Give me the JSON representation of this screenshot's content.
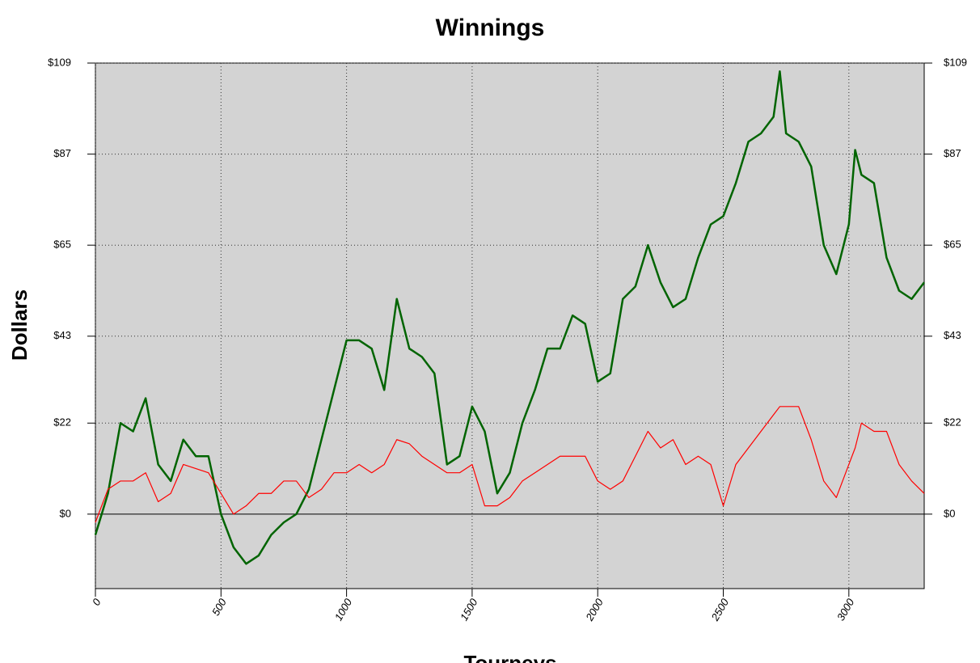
{
  "chart_data": {
    "type": "line",
    "title": "Winnings",
    "xlabel": "Tourneys",
    "ylabel": "Dollars",
    "x": [
      0,
      50,
      100,
      150,
      200,
      250,
      300,
      350,
      400,
      450,
      500,
      550,
      600,
      650,
      700,
      750,
      800,
      850,
      900,
      950,
      1000,
      1050,
      1100,
      1150,
      1200,
      1250,
      1300,
      1350,
      1400,
      1450,
      1500,
      1550,
      1600,
      1650,
      1700,
      1750,
      1800,
      1850,
      1900,
      1950,
      2000,
      2050,
      2100,
      2150,
      2200,
      2250,
      2300,
      2350,
      2400,
      2450,
      2500,
      2550,
      2600,
      2650,
      2700,
      2725,
      2750,
      2800,
      2850,
      2900,
      2950,
      3000,
      3025,
      3050,
      3100,
      3150,
      3200,
      3250,
      3300
    ],
    "series": [
      {
        "color": "#006400",
        "values": [
          -5,
          5,
          22,
          20,
          28,
          12,
          8,
          18,
          14,
          14,
          0,
          -8,
          -12,
          -10,
          -5,
          -2,
          0,
          6,
          18,
          30,
          42,
          42,
          40,
          30,
          52,
          40,
          38,
          34,
          12,
          14,
          26,
          20,
          5,
          10,
          22,
          30,
          40,
          40,
          48,
          46,
          32,
          34,
          52,
          55,
          65,
          56,
          50,
          52,
          62,
          70,
          72,
          80,
          90,
          92,
          96,
          107,
          92,
          90,
          84,
          65,
          58,
          70,
          88,
          82,
          80,
          62,
          54,
          52,
          56
        ]
      },
      {
        "color": "#ff0000",
        "values": [
          -2,
          6,
          8,
          8,
          10,
          3,
          5,
          12,
          11,
          10,
          5,
          0,
          2,
          5,
          5,
          8,
          8,
          4,
          6,
          10,
          10,
          12,
          10,
          12,
          18,
          17,
          14,
          12,
          10,
          10,
          12,
          2,
          2,
          4,
          8,
          10,
          12,
          14,
          14,
          14,
          8,
          6,
          8,
          14,
          20,
          16,
          18,
          12,
          14,
          12,
          2,
          12,
          16,
          20,
          24,
          26,
          26,
          26,
          18,
          8,
          4,
          12,
          16,
          22,
          20,
          20,
          12,
          8,
          5
        ]
      }
    ],
    "xlim": [
      0,
      3300
    ],
    "ylim": [
      -18,
      109
    ],
    "xticks": [
      0,
      500,
      1000,
      1500,
      2000,
      2500,
      3000
    ],
    "yticks": [
      {
        "value": 0,
        "label": "$0"
      },
      {
        "value": 22,
        "label": "$22"
      },
      {
        "value": 43,
        "label": "$43"
      },
      {
        "value": 65,
        "label": "$65"
      },
      {
        "value": 87,
        "label": "$87"
      },
      {
        "value": 109,
        "label": "$109"
      }
    ],
    "grid": true
  }
}
